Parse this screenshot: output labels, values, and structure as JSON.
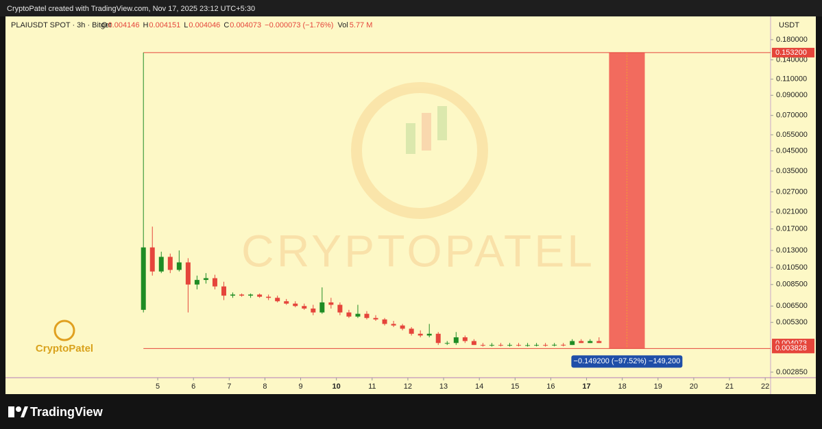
{
  "header": {
    "text": "CryptoPatel created with TradingView.com, Nov 17, 2025 23:12 UTC+5:30"
  },
  "footer": {
    "brand": "TradingView"
  },
  "chart_data": {
    "type": "candlestick",
    "symbol": "PLAIUSDT SPOT · 3h · Bitget",
    "ohlc_legend": [
      {
        "key": "O",
        "value": 0.004146
      },
      {
        "key": "H",
        "value": 0.004151
      },
      {
        "key": "L",
        "value": 0.004046
      },
      {
        "key": "C",
        "value": 0.004073
      }
    ],
    "change": "−0.000073 (−1.76%)",
    "volume": {
      "key": "Vol",
      "value": "5.77 M"
    },
    "unit": "USDT",
    "log_scale": true,
    "up_color": "#1e8c24",
    "down_color": "#e5453b",
    "x": [
      4.6,
      4.85,
      5.1,
      5.35,
      5.6,
      5.85,
      6.1,
      6.35,
      6.6,
      6.85,
      7.1,
      7.35,
      7.6,
      7.85,
      8.1,
      8.35,
      8.6,
      8.85,
      9.1,
      9.35,
      9.6,
      9.85,
      10.1,
      10.35,
      10.6,
      10.85,
      11.1,
      11.35,
      11.6,
      11.85,
      12.1,
      12.35,
      12.6,
      12.85,
      13.1,
      13.35,
      13.6,
      13.85,
      14.1,
      14.35,
      14.6,
      14.85,
      15.1,
      15.35,
      15.6,
      15.85,
      16.1,
      16.35,
      16.6,
      16.85,
      17.1,
      17.35
    ],
    "open": [
      0.0062,
      0.0135,
      0.01,
      0.012,
      0.0102,
      0.0112,
      0.0085,
      0.009,
      0.0092,
      0.0083,
      0.0074,
      0.0075,
      0.0074,
      0.0075,
      0.0073,
      0.0072,
      0.0069,
      0.0067,
      0.0065,
      0.0063,
      0.006,
      0.0068,
      0.0066,
      0.006,
      0.0057,
      0.0059,
      0.0056,
      0.0055,
      0.0052,
      0.0051,
      0.0049,
      0.0046,
      0.0045,
      0.0046,
      0.0041,
      0.0041,
      0.0044,
      0.0042,
      0.004,
      0.00398,
      0.004,
      0.00399,
      0.004,
      0.00398,
      0.00399,
      0.004,
      0.00398,
      0.00401,
      0.004,
      0.0042,
      0.0041,
      0.0042
    ],
    "high": [
      0.1532,
      0.0175,
      0.0128,
      0.0125,
      0.013,
      0.0118,
      0.0095,
      0.0098,
      0.0096,
      0.0088,
      0.0077,
      0.0076,
      0.0076,
      0.0076,
      0.0075,
      0.0074,
      0.0071,
      0.0069,
      0.0067,
      0.0066,
      0.0082,
      0.0072,
      0.0068,
      0.0062,
      0.0066,
      0.0061,
      0.0058,
      0.0056,
      0.0054,
      0.0052,
      0.005,
      0.0048,
      0.0052,
      0.0047,
      0.0042,
      0.0047,
      0.0045,
      0.0043,
      0.0041,
      0.0041,
      0.0041,
      0.0041,
      0.0041,
      0.0041,
      0.0041,
      0.0041,
      0.0041,
      0.0041,
      0.0043,
      0.0043,
      0.0043,
      0.0044
    ],
    "low": [
      0.006,
      0.0095,
      0.0098,
      0.0098,
      0.01,
      0.006,
      0.008,
      0.0086,
      0.008,
      0.007,
      0.0072,
      0.0073,
      0.0072,
      0.0072,
      0.007,
      0.0068,
      0.0066,
      0.0064,
      0.0062,
      0.0058,
      0.0059,
      0.0063,
      0.0058,
      0.0056,
      0.0056,
      0.0055,
      0.0054,
      0.0051,
      0.005,
      0.0048,
      0.0045,
      0.0044,
      0.0044,
      0.004,
      0.004,
      0.004,
      0.0041,
      0.004,
      0.00392,
      0.00392,
      0.00393,
      0.00392,
      0.00393,
      0.00392,
      0.00393,
      0.00392,
      0.00393,
      0.00393,
      0.004,
      0.0041,
      0.0041,
      0.0041
    ],
    "close": [
      0.0135,
      0.01,
      0.012,
      0.0102,
      0.0112,
      0.0085,
      0.009,
      0.0092,
      0.0083,
      0.0074,
      0.0075,
      0.0074,
      0.0075,
      0.0073,
      0.0072,
      0.0069,
      0.0067,
      0.0065,
      0.0063,
      0.006,
      0.0068,
      0.0066,
      0.006,
      0.0057,
      0.0059,
      0.0056,
      0.0055,
      0.0052,
      0.0051,
      0.0049,
      0.0046,
      0.0045,
      0.0046,
      0.0041,
      0.0041,
      0.0044,
      0.0042,
      0.004,
      0.00398,
      0.004,
      0.00399,
      0.004,
      0.00398,
      0.00399,
      0.004,
      0.00398,
      0.00401,
      0.004,
      0.0042,
      0.0041,
      0.0042,
      0.0041
    ],
    "xlim": [
      0.74,
      22.15
    ],
    "xticks": [
      5,
      6,
      7,
      8,
      9,
      10,
      11,
      12,
      13,
      14,
      15,
      16,
      17,
      18,
      19,
      20,
      21,
      22
    ],
    "bold_xticks": [
      10,
      17
    ],
    "ylim": [
      0.00266,
      0.2406
    ],
    "yticks": [
      {
        "value": 0.18,
        "label": "0.180000"
      },
      {
        "value": 0.14,
        "label": "0.140000"
      },
      {
        "value": 0.11,
        "label": "0.110000"
      },
      {
        "value": 0.09,
        "label": "0.090000"
      },
      {
        "value": 0.07,
        "label": "0.070000"
      },
      {
        "value": 0.055,
        "label": "0.055000"
      },
      {
        "value": 0.045,
        "label": "0.045000"
      },
      {
        "value": 0.035,
        "label": "0.035000"
      },
      {
        "value": 0.027,
        "label": "0.027000"
      },
      {
        "value": 0.021,
        "label": "0.021000"
      },
      {
        "value": 0.017,
        "label": "0.017000"
      },
      {
        "value": 0.013,
        "label": "0.013000"
      },
      {
        "value": 0.0105,
        "label": "0.010500"
      },
      {
        "value": 0.0085,
        "label": "0.008500"
      },
      {
        "value": 0.0065,
        "label": "0.006500"
      },
      {
        "value": 0.0053,
        "label": "0.005300"
      },
      {
        "value": 0.00285,
        "label": "0.002850"
      }
    ],
    "price_labels": [
      {
        "value": 0.1532,
        "label": "0.153200",
        "hline": true
      },
      {
        "value": 0.004073,
        "label": "0.004073",
        "hline": false
      },
      {
        "value": 0.003828,
        "label": "0.003828",
        "hline": true
      }
    ],
    "highlight": {
      "x": [
        17.63,
        18.63
      ],
      "color": "#f26b5e"
    },
    "measure": {
      "label": "−0.149200 (−97.52%) −149,200"
    },
    "watermark": "CRYPTOPATEL",
    "logo_text": "CryptoPatel"
  }
}
